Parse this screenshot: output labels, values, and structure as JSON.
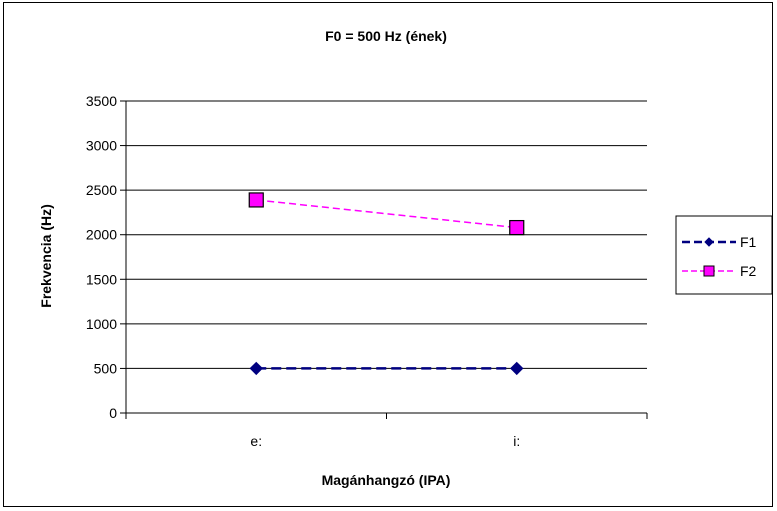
{
  "chart_data": {
    "type": "line",
    "title": "F0 = 500 Hz (ének)",
    "xlabel": "Magánhangzó (IPA)",
    "ylabel": "Frekvencia (Hz)",
    "categories": [
      "e:",
      "i:"
    ],
    "ylim": [
      0,
      3500
    ],
    "yticks": [
      0,
      500,
      1000,
      1500,
      2000,
      2500,
      3000,
      3500
    ],
    "grid": true,
    "legend_position": "right",
    "series": [
      {
        "name": "F1",
        "values": [
          500,
          500
        ],
        "color": "#000080",
        "marker": "diamond",
        "line_style": "dashed"
      },
      {
        "name": "F2",
        "values": [
          2390,
          2080
        ],
        "color": "#FF00FF",
        "marker": "square",
        "line_style": "dashed"
      }
    ]
  }
}
